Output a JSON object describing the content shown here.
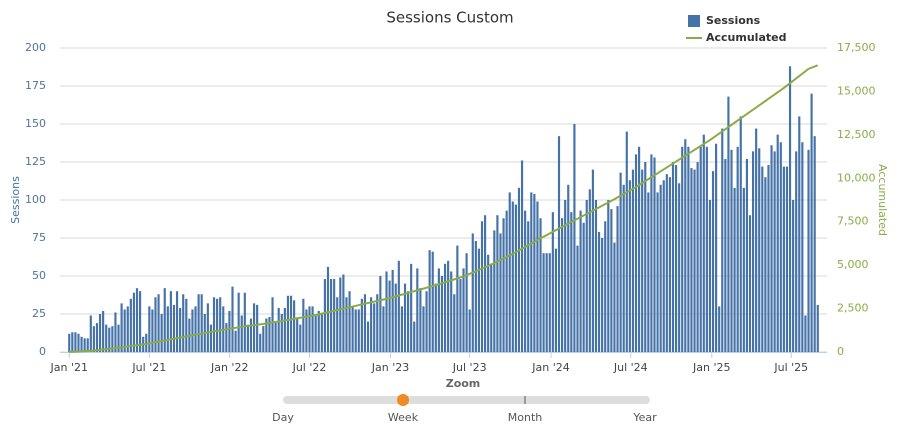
{
  "chart_data": {
    "type": "bar",
    "title": "Sessions Custom",
    "ylabel": "Sessions",
    "y2label": "Accumulated",
    "xlim": [
      -3,
      246
    ],
    "xticks": [
      {
        "value": 0,
        "label": "Jan '21"
      },
      {
        "value": 26,
        "label": "Jul '21"
      },
      {
        "value": 52.1,
        "label": "Jan '22"
      },
      {
        "value": 78,
        "label": "Jul '22"
      },
      {
        "value": 104.3,
        "label": "Jan '23"
      },
      {
        "value": 130,
        "label": "Jul '23"
      },
      {
        "value": 156.4,
        "label": "Jan '24"
      },
      {
        "value": 182.3,
        "label": "Jul '24"
      },
      {
        "value": 208.6,
        "label": "Jan '25"
      },
      {
        "value": 234.4,
        "label": "Jul '25"
      }
    ],
    "ylim": [
      0,
      200
    ],
    "yticks": [
      0,
      25,
      50,
      75,
      100,
      125,
      150,
      175,
      200
    ],
    "y2lim": [
      0,
      17500
    ],
    "y2ticks": [
      0,
      {
        "value": 2500,
        "label": "2,500"
      },
      {
        "value": 5000,
        "label": "5,000"
      },
      {
        "value": 7500,
        "label": "7,500"
      },
      {
        "value": 10000,
        "label": "10,000"
      },
      {
        "value": 12500,
        "label": "12,500"
      },
      {
        "value": 15000,
        "label": "15,000"
      },
      {
        "value": 17500,
        "label": "17,500"
      }
    ],
    "grid": true,
    "legend": "top-right",
    "series": [
      {
        "name": "Sessions",
        "color": "#4572a7",
        "type": "bar",
        "values": [
          12,
          13,
          13,
          12,
          10,
          9,
          9,
          24,
          17,
          19,
          25,
          27,
          18,
          16,
          17,
          26,
          18,
          32,
          28,
          30,
          35,
          39,
          42,
          40,
          10,
          12,
          30,
          28,
          36,
          38,
          25,
          42,
          30,
          40,
          31,
          40,
          29,
          38,
          35,
          22,
          28,
          30,
          38,
          38,
          25,
          32,
          18,
          36,
          35,
          36,
          30,
          19,
          27,
          43,
          14,
          39,
          24,
          39,
          18,
          22,
          32,
          31,
          12,
          17,
          22,
          23,
          36,
          20,
          29,
          25,
          29,
          37,
          37,
          34,
          22,
          18,
          35,
          28,
          30,
          30,
          24,
          27,
          25,
          48,
          56,
          48,
          48,
          36,
          49,
          51,
          36,
          40,
          30,
          28,
          28,
          35,
          38,
          20,
          36,
          32,
          38,
          50,
          30,
          53,
          47,
          54,
          45,
          60,
          30,
          45,
          40,
          58,
          20,
          55,
          42,
          30,
          40,
          67,
          66,
          45,
          55,
          50,
          58,
          60,
          53,
          38,
          70,
          48,
          55,
          65,
          28,
          78,
          73,
          68,
          86,
          90,
          64,
          58,
          80,
          90,
          78,
          88,
          93,
          105,
          99,
          97,
          108,
          126,
          93,
          86,
          105,
          104,
          99,
          88,
          65,
          65,
          65,
          92,
          68,
          142,
          88,
          100,
          110,
          92,
          150,
          70,
          93,
          85,
          100,
          107,
          120,
          100,
          79,
          75,
          86,
          100,
          94,
          72,
          96,
          118,
          110,
          145,
          113,
          120,
          130,
          135,
          120,
          125,
          105,
          130,
          128,
          105,
          110,
          113,
          117,
          115,
          125,
          123,
          111,
          135,
          140,
          135,
          121,
          120,
          125,
          135,
          143,
          135,
          100,
          119,
          137,
          30,
          147,
          127,
          168,
          133,
          108,
          135,
          155,
          108,
          127,
          90,
          132,
          147,
          134,
          122,
          115,
          123,
          136,
          132,
          143,
          138,
          122,
          122,
          188,
          100,
          132,
          155,
          138,
          24,
          133,
          170,
          142,
          31
        ]
      },
      {
        "name": "Accumulated",
        "color": "#8aac48",
        "type": "line",
        "axis": "y2",
        "x": [
          0,
          8,
          16,
          24,
          32,
          40,
          48,
          56,
          64,
          72,
          80,
          88,
          96,
          104,
          112,
          120,
          128,
          136,
          144,
          152,
          160,
          168,
          176,
          184,
          192,
          200,
          208,
          216,
          224,
          232,
          240,
          243
        ],
        "values": [
          0,
          80,
          250,
          440,
          700,
          960,
          1220,
          1450,
          1640,
          1880,
          2130,
          2450,
          2780,
          3100,
          3500,
          3900,
          4350,
          4950,
          5650,
          6450,
          7200,
          7950,
          8700,
          9500,
          10400,
          11300,
          12200,
          13200,
          14200,
          15200,
          16300,
          16500
        ]
      }
    ],
    "zoom": {
      "title": "Zoom",
      "options": [
        "Day",
        "Week",
        "Month",
        "Year"
      ],
      "selected": 1
    }
  }
}
